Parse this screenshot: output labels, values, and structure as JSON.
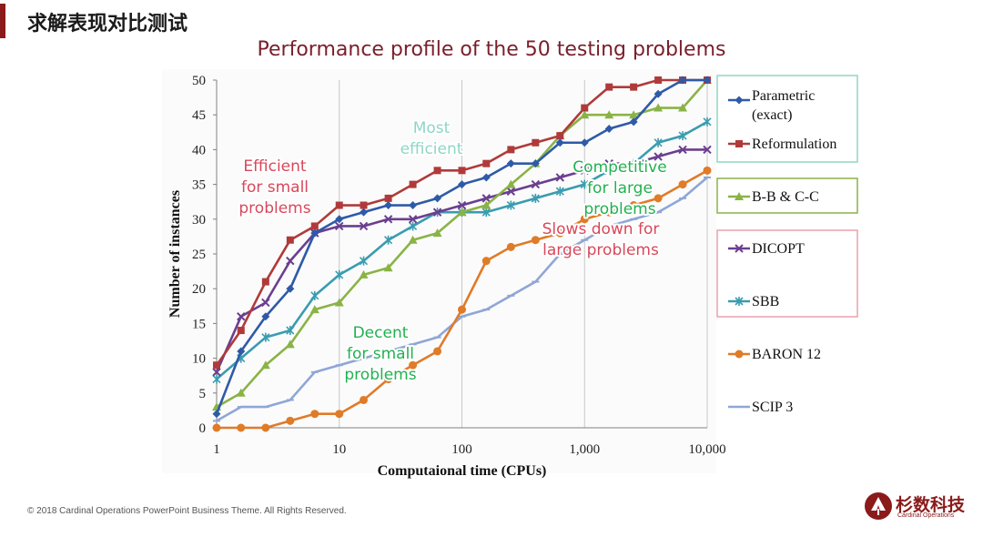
{
  "slide": {
    "title": "求解表现对比测试",
    "footer": "© 2018 Cardinal Operations PowerPoint Business Theme. All Rights Reserved.",
    "logo_cn": "杉数科技",
    "logo_en": "Cardinal Operations"
  },
  "chart_data": {
    "type": "line",
    "title": "Performance profile of the 50 testing problems",
    "xlabel": "Computaional time (CPUs)",
    "ylabel": "Number of instances",
    "xscale": "log",
    "xlim": [
      1,
      10000
    ],
    "ylim": [
      0,
      50
    ],
    "xticks": [
      1,
      10,
      100,
      1000,
      10000
    ],
    "xtick_labels": [
      "1",
      "10",
      "100",
      "1,000",
      "10,000"
    ],
    "yticks": [
      0,
      5,
      10,
      15,
      20,
      25,
      30,
      35,
      40,
      45,
      50
    ],
    "grid": "vertical major lines",
    "legend_position": "right",
    "series": [
      {
        "name": "Parametric (exact)",
        "color": "#2e5aa8",
        "marker": "diamond",
        "x": [
          1,
          1.58,
          2.51,
          3.98,
          6.31,
          10,
          15.8,
          25.1,
          39.8,
          63.1,
          100,
          158,
          251,
          398,
          631,
          1000,
          1585,
          2512,
          3981,
          6310,
          10000
        ],
        "y": [
          2,
          11,
          16,
          20,
          28,
          30,
          31,
          32,
          32,
          33,
          35,
          36,
          38,
          38,
          41,
          41,
          43,
          44,
          48,
          50,
          50
        ]
      },
      {
        "name": "Reformulation",
        "color": "#b03a3a",
        "marker": "square",
        "x": [
          1,
          1.58,
          2.51,
          3.98,
          6.31,
          10,
          15.8,
          25.1,
          39.8,
          63.1,
          100,
          158,
          251,
          398,
          631,
          1000,
          1585,
          2512,
          3981,
          6310,
          10000
        ],
        "y": [
          9,
          14,
          21,
          27,
          29,
          32,
          32,
          33,
          35,
          37,
          37,
          38,
          40,
          41,
          42,
          46,
          49,
          49,
          50,
          50,
          50
        ]
      },
      {
        "name": "B-B & C-C",
        "color": "#8ab346",
        "marker": "triangle",
        "x": [
          1,
          1.58,
          2.51,
          3.98,
          6.31,
          10,
          15.8,
          25.1,
          39.8,
          63.1,
          100,
          158,
          251,
          398,
          631,
          1000,
          1585,
          2512,
          3981,
          6310,
          10000
        ],
        "y": [
          3,
          5,
          9,
          12,
          17,
          18,
          22,
          23,
          27,
          28,
          31,
          32,
          35,
          38,
          42,
          45,
          45,
          45,
          46,
          46,
          50
        ]
      },
      {
        "name": "DICOPT",
        "color": "#6a3f8f",
        "marker": "x",
        "x": [
          1,
          1.58,
          2.51,
          3.98,
          6.31,
          10,
          15.8,
          25.1,
          39.8,
          63.1,
          100,
          158,
          251,
          398,
          631,
          1000,
          1585,
          2512,
          3981,
          6310,
          10000
        ],
        "y": [
          8,
          16,
          18,
          24,
          28,
          29,
          29,
          30,
          30,
          31,
          32,
          33,
          34,
          35,
          36,
          37,
          38,
          38,
          39,
          40,
          40
        ]
      },
      {
        "name": "SBB",
        "color": "#3a9cb0",
        "marker": "star",
        "x": [
          1,
          1.58,
          2.51,
          3.98,
          6.31,
          10,
          15.8,
          25.1,
          39.8,
          63.1,
          100,
          158,
          251,
          398,
          631,
          1000,
          1585,
          2512,
          3981,
          6310,
          10000
        ],
        "y": [
          7,
          10,
          13,
          14,
          19,
          22,
          24,
          27,
          29,
          31,
          31,
          31,
          32,
          33,
          34,
          35,
          37,
          38,
          41,
          42,
          44
        ]
      },
      {
        "name": "BARON 12",
        "color": "#e07b28",
        "marker": "circle",
        "x": [
          1,
          1.58,
          2.51,
          3.98,
          6.31,
          10,
          15.8,
          25.1,
          39.8,
          63.1,
          100,
          158,
          251,
          398,
          631,
          1000,
          1585,
          2512,
          3981,
          6310,
          10000
        ],
        "y": [
          0,
          0,
          0,
          1,
          2,
          2,
          4,
          7,
          9,
          11,
          17,
          24,
          26,
          27,
          28,
          30,
          31,
          32,
          33,
          35,
          37
        ]
      },
      {
        "name": "SCIP 3",
        "color": "#8fa6d6",
        "marker": "dash",
        "x": [
          1,
          1.58,
          2.51,
          3.98,
          6.31,
          10,
          15.8,
          25.1,
          39.8,
          63.1,
          100,
          158,
          251,
          398,
          631,
          1000,
          1585,
          2512,
          3981,
          6310,
          10000
        ],
        "y": [
          1,
          3,
          3,
          4,
          8,
          9,
          10,
          11,
          12,
          13,
          16,
          17,
          19,
          21,
          25,
          27,
          29,
          30,
          31,
          33,
          36
        ]
      }
    ],
    "annotations": [
      {
        "text": "Efficient\nfor small\nproblems",
        "color": "#d9475a"
      },
      {
        "text": "Most\nefficient",
        "color": "#8fd6c6"
      },
      {
        "text": "Competitive\nfor large\nproblems",
        "color": "#22b050"
      },
      {
        "text": "Slows down for\nlarge problems",
        "color": "#d9475a"
      },
      {
        "text": "Decent\nfor small\nproblems",
        "color": "#22b050"
      }
    ],
    "legend_box_colors": {
      "group1": "#8fd6c6",
      "group2": "#8ab346",
      "group3": "#e8a2ad"
    }
  }
}
